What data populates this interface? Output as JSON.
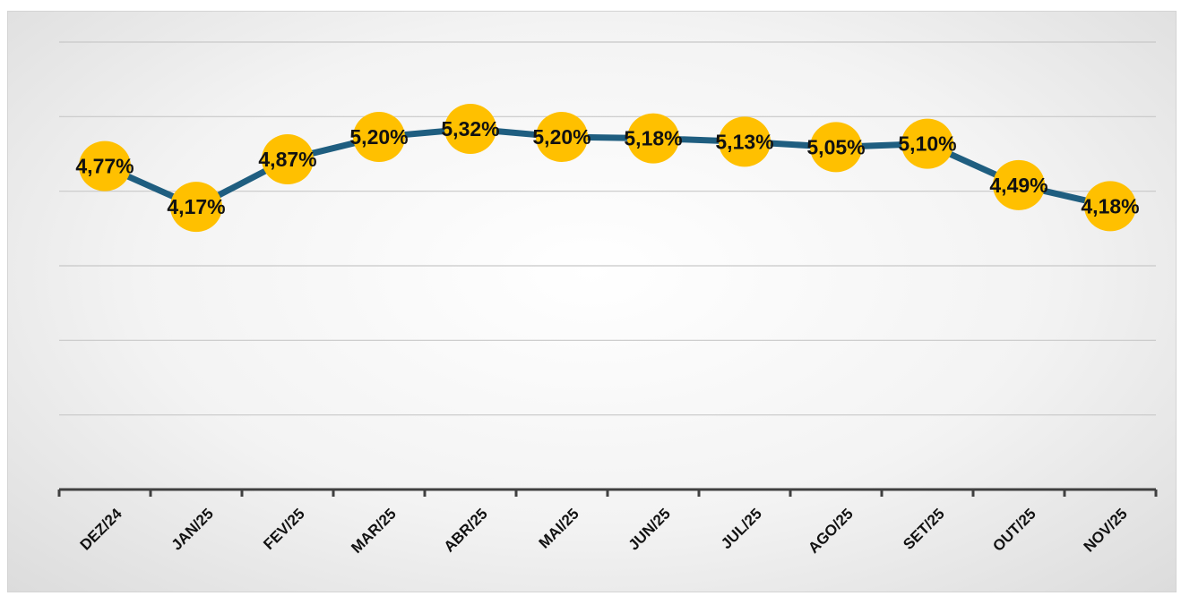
{
  "chart_data": {
    "type": "line",
    "categories": [
      "DEZ/24",
      "JAN/25",
      "FEV/25",
      "MAR/25",
      "ABR/25",
      "MAI/25",
      "JUN/25",
      "JUL/25",
      "AGO/25",
      "SET/25",
      "OUT/25",
      "NOV/25"
    ],
    "series": [
      {
        "values": [
          4.77,
          4.17,
          4.87,
          5.2,
          5.32,
          5.2,
          5.18,
          5.13,
          5.05,
          5.1,
          4.49,
          4.18
        ],
        "labels": [
          "4,77%",
          "4,17%",
          "4,87%",
          "5,20%",
          "5,32%",
          "5,20%",
          "5,18%",
          "5,13%",
          "5,05%",
          "5,10%",
          "4,49%",
          "4,18%"
        ]
      }
    ],
    "title": "",
    "xlabel": "",
    "ylabel": "",
    "ylim": [
      0,
      6.6
    ],
    "grid": true,
    "legend": "none",
    "colors": {
      "line": "#1f5e80",
      "marker": "#ffc000",
      "grid": "#c8c8c8",
      "axis": "#404040"
    }
  }
}
